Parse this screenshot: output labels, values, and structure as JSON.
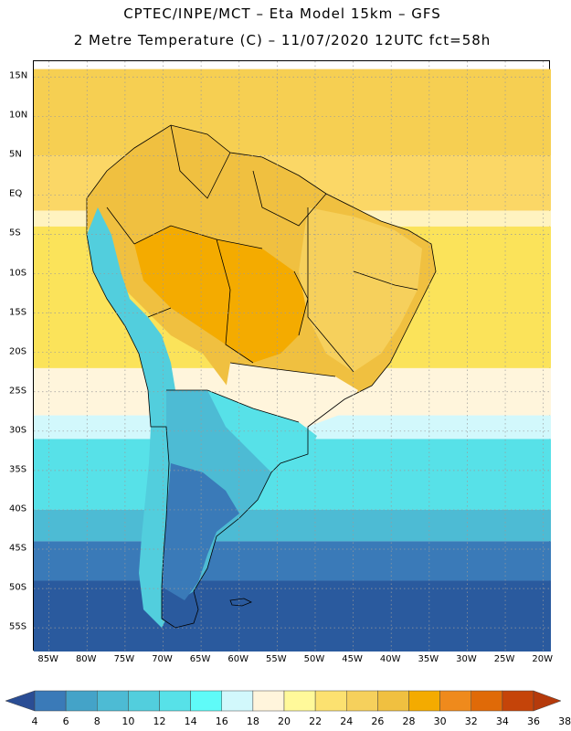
{
  "header": {
    "line1": "CPTEC/INPE/MCT –  Eta Model 15km – GFS",
    "line2": "2 Metre Temperature (C) – 11/07/2020 12UTC fct=58h"
  },
  "lat_labels": [
    "15N",
    "10N",
    "5N",
    "EQ",
    "5S",
    "10S",
    "15S",
    "20S",
    "25S",
    "30S",
    "35S",
    "40S",
    "45S",
    "50S",
    "55S"
  ],
  "lon_labels": [
    "85W",
    "80W",
    "75W",
    "70W",
    "65W",
    "60W",
    "55W",
    "50W",
    "45W",
    "40W",
    "35W",
    "30W",
    "25W",
    "20W"
  ],
  "legend": {
    "colors": [
      "#2a4d94",
      "#3a7ab8",
      "#44a3c8",
      "#4dbbd4",
      "#52cedd",
      "#57e1e8",
      "#5ffbf8",
      "#d2f8fc",
      "#fff5dc",
      "#fff99a",
      "#fce170",
      "#f6d05c",
      "#f0c040",
      "#f4ab00",
      "#ef8a1c",
      "#e06a08",
      "#c54409",
      "#b53a0b"
    ],
    "labels": [
      "4",
      "6",
      "8",
      "10",
      "12",
      "14",
      "16",
      "18",
      "20",
      "22",
      "24",
      "26",
      "28",
      "30",
      "32",
      "34",
      "36",
      "38"
    ]
  },
  "map": {
    "ocean_bands": [
      {
        "color": "#f6cf52",
        "range_lat": [
          16,
          5
        ]
      },
      {
        "color": "#fbd766",
        "range_lat": [
          5,
          -2
        ]
      },
      {
        "color": "#fff3c0",
        "range_lat": [
          -2,
          -4
        ]
      },
      {
        "color": "#fbe35a",
        "range_lat": [
          -4,
          -22
        ]
      },
      {
        "color": "#fff5dc",
        "range_lat": [
          -22,
          -28
        ]
      },
      {
        "color": "#d2f8fc",
        "range_lat": [
          -28,
          -31
        ]
      },
      {
        "color": "#57e1e8",
        "range_lat": [
          -31,
          -40
        ]
      },
      {
        "color": "#4dbbd4",
        "range_lat": [
          -40,
          -44
        ]
      },
      {
        "color": "#3a7ab8",
        "range_lat": [
          -44,
          -49
        ]
      },
      {
        "color": "#2a5a9e",
        "range_lat": [
          -49,
          -58
        ]
      }
    ]
  }
}
